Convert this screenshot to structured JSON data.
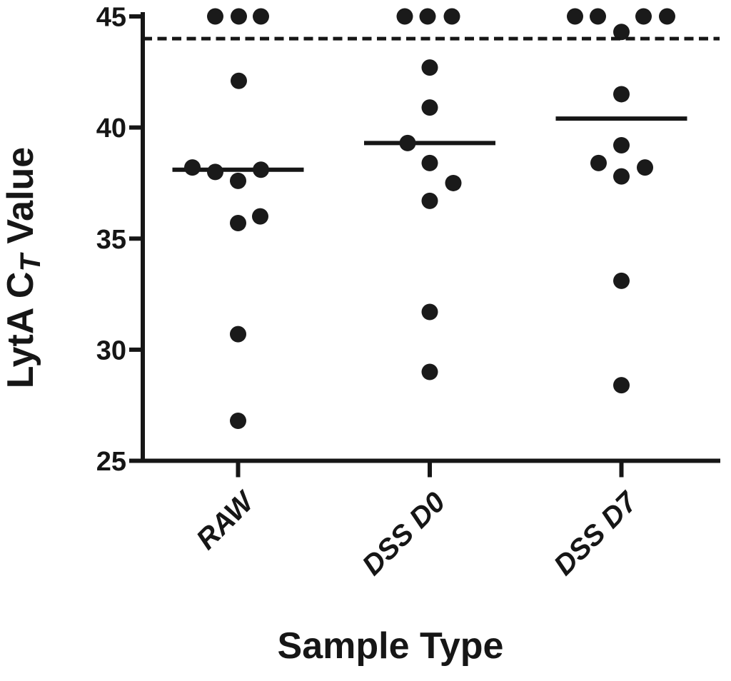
{
  "chart_data": {
    "type": "scatter",
    "subtype": "column-dot-plot-with-median",
    "title": "",
    "xlabel": "Sample Type",
    "ylabel": "LytA CT Value",
    "ylabel_parts": {
      "pre": "LytA C",
      "sub": "T",
      "post": " Value"
    },
    "ylim": [
      25,
      45
    ],
    "yticks": [
      25,
      30,
      35,
      40,
      45
    ],
    "grid": false,
    "legend": "none",
    "detection_limit_line": {
      "value": 44,
      "style": "dashed"
    },
    "point_color": "#1a1a1a",
    "axis_color": "#161616",
    "categories": [
      "RAW",
      "DSS D0",
      "DSS D7"
    ],
    "groups": [
      {
        "label": "RAW",
        "median": 38.1,
        "values": [
          45,
          45,
          45,
          42.1,
          38.2,
          38.0,
          38.1,
          37.6,
          36.0,
          35.7,
          30.7,
          26.8
        ],
        "points": [
          [
            -32,
            45
          ],
          [
            1,
            45
          ],
          [
            32,
            45
          ],
          [
            1,
            42.1
          ],
          [
            -64,
            38.2
          ],
          [
            -32,
            38.0
          ],
          [
            32,
            38.1
          ],
          [
            0,
            37.6
          ],
          [
            31,
            36.0
          ],
          [
            0,
            35.7
          ],
          [
            0,
            30.7
          ],
          [
            0,
            26.8
          ]
        ]
      },
      {
        "label": "DSS D0",
        "median": 39.3,
        "values": [
          45,
          45,
          45,
          42.7,
          40.9,
          39.3,
          38.4,
          37.5,
          36.7,
          31.7,
          29.0
        ],
        "points": [
          [
            -35,
            45
          ],
          [
            -3,
            45
          ],
          [
            31,
            45
          ],
          [
            0,
            42.7
          ],
          [
            0,
            40.9
          ],
          [
            -31,
            39.3
          ],
          [
            0,
            38.4
          ],
          [
            33,
            37.5
          ],
          [
            0,
            36.7
          ],
          [
            0,
            31.7
          ],
          [
            0,
            29.0
          ]
        ]
      },
      {
        "label": "DSS D7",
        "median": 40.4,
        "values": [
          45,
          45,
          45,
          45,
          44.3,
          41.5,
          39.2,
          38.4,
          38.2,
          37.8,
          33.1,
          28.4
        ],
        "points": [
          [
            -65,
            45
          ],
          [
            -33,
            45
          ],
          [
            31,
            45
          ],
          [
            64,
            45
          ],
          [
            0,
            44.3
          ],
          [
            0,
            41.5
          ],
          [
            0,
            39.2
          ],
          [
            -32,
            38.4
          ],
          [
            33,
            38.2
          ],
          [
            0,
            37.8
          ],
          [
            0,
            33.1
          ],
          [
            0,
            28.4
          ]
        ]
      }
    ]
  }
}
